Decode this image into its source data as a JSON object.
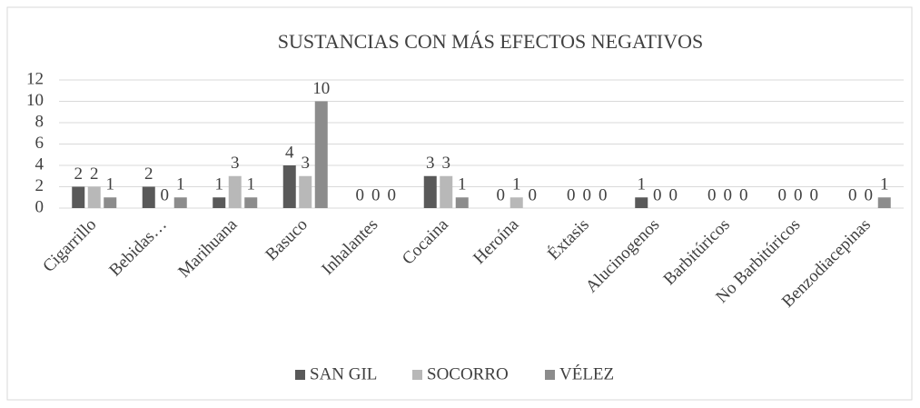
{
  "chart_data": {
    "type": "bar",
    "title": "SUSTANCIAS CON MÁS EFECTOS NEGATIVOS",
    "categories": [
      "Cigarrillo",
      "Bebidas…",
      "Marihuana",
      "Basuco",
      "Inhalantes",
      "Cocaina",
      "Heroína",
      "Éxtasis",
      "Alucinogenos",
      "Barbitúricos",
      "No Barbitúricos",
      "Benzodiacepinas"
    ],
    "series": [
      {
        "name": "SAN GIL",
        "color": "#595959",
        "values": [
          2,
          2,
          1,
          4,
          0,
          3,
          0,
          0,
          1,
          0,
          0,
          0
        ]
      },
      {
        "name": "SOCORRO",
        "color": "#b8b8b8",
        "values": [
          2,
          0,
          3,
          3,
          0,
          3,
          1,
          0,
          0,
          0,
          0,
          0
        ]
      },
      {
        "name": "VÉLEZ",
        "color": "#8c8c8c",
        "values": [
          1,
          1,
          1,
          10,
          0,
          1,
          0,
          0,
          0,
          0,
          0,
          1
        ]
      }
    ],
    "ylim": [
      0,
      12
    ],
    "yticks": [
      0,
      2,
      4,
      6,
      8,
      10,
      12
    ],
    "grid": true,
    "legend": "bottom"
  }
}
